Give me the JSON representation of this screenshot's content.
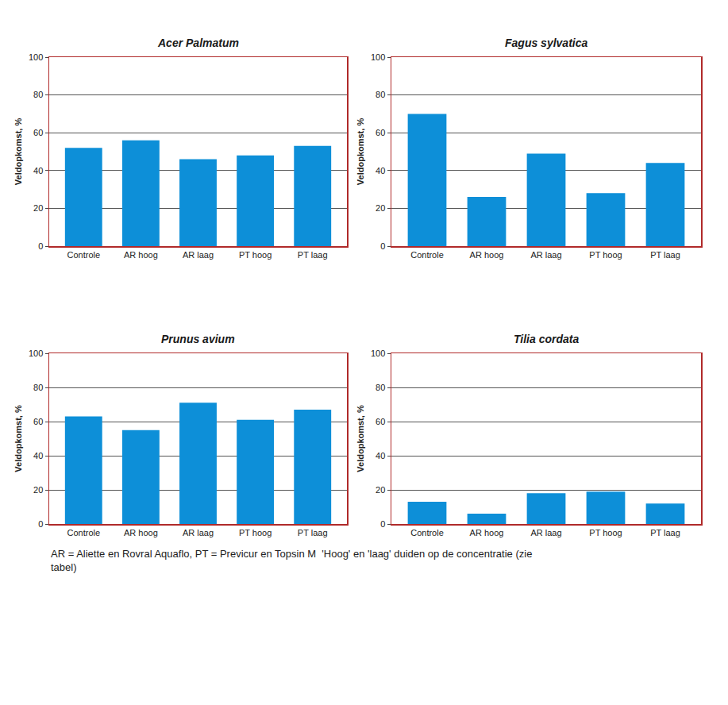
{
  "chart_data": [
    {
      "type": "bar",
      "title": "Acer Palmatum",
      "y_label": "Veldopkomst, %",
      "categories": [
        "Controle",
        "AR hoog",
        "AR laag",
        "PT hoog",
        "PT laag"
      ],
      "values": [
        52,
        56,
        46,
        48,
        53
      ],
      "color": "#0d8fd8",
      "ylim": [
        0,
        100
      ],
      "yticks": [
        0,
        20,
        40,
        60,
        80,
        100
      ],
      "grid": true
    },
    {
      "type": "bar",
      "title": "Fagus sylvatica",
      "y_label": "Veldopkomst, %",
      "categories": [
        "Controle",
        "AR hoog",
        "AR laag",
        "PT hoog",
        "PT laag"
      ],
      "values": [
        70,
        26,
        49,
        28,
        44
      ],
      "color": "#0d8fd8",
      "ylim": [
        0,
        100
      ],
      "yticks": [
        0,
        20,
        40,
        60,
        80,
        100
      ],
      "grid": true
    },
    {
      "type": "bar",
      "title": "Prunus avium",
      "y_label": "Veldopkomst, %",
      "categories": [
        "Controle",
        "AR hoog",
        "AR laag",
        "PT hoog",
        "PT laag"
      ],
      "values": [
        63,
        55,
        71,
        61,
        67
      ],
      "color": "#0d8fd8",
      "ylim": [
        0,
        100
      ],
      "yticks": [
        0,
        20,
        40,
        60,
        80,
        100
      ],
      "grid": true
    },
    {
      "type": "bar",
      "title": "Tilia cordata",
      "y_label": "Veldopkomst, %",
      "categories": [
        "Controle",
        "AR hoog",
        "AR laag",
        "PT hoog",
        "PT laag"
      ],
      "values": [
        13,
        6,
        18,
        19,
        12
      ],
      "color": "#0d8fd8",
      "ylim": [
        0,
        100
      ],
      "yticks": [
        0,
        20,
        40,
        60,
        80,
        100
      ],
      "grid": true
    }
  ],
  "caption": "AR = Aliette en Rovral Aquaflo, PT = Previcur en Topsin M  'Hoog' en 'laag' duiden op de concentratie (zie tabel)"
}
